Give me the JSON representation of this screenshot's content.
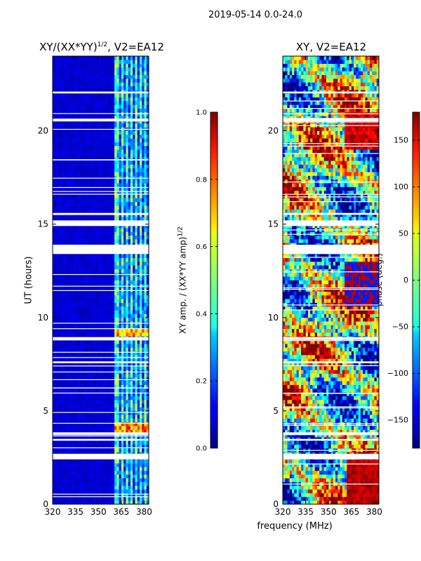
{
  "chart_data": {
    "suptitle": "2019-05-14 0.0-24.0",
    "xlabel": "frequency (MHz)",
    "ylabel": "UT (hours)",
    "panels": [
      {
        "type": "heatmap",
        "title": "XY/(XX*YY)",
        "title_sup": "1/2",
        "title_suffix": ", V2=EA12",
        "xlim": [
          320,
          383
        ],
        "ylim": [
          0,
          24
        ],
        "x_ticks": [
          320,
          335,
          350,
          365,
          380
        ],
        "y_ticks": [
          0,
          5,
          10,
          15,
          20
        ],
        "colorbar": {
          "label": "XY amp. / (XX*YY amp)",
          "label_sup": "1/2",
          "range": [
            0.0,
            1.0
          ],
          "ticks": [
            "0.0",
            "0.2",
            "0.4",
            "0.6",
            "0.8",
            "1.0"
          ],
          "cmap": "jet"
        }
      },
      {
        "type": "heatmap",
        "title": "XY, V2=EA12",
        "xlim": [
          320,
          383
        ],
        "ylim": [
          0,
          24
        ],
        "x_ticks": [
          320,
          335,
          350,
          365,
          380
        ],
        "y_ticks": [
          0,
          5,
          10,
          15,
          20
        ],
        "colorbar": {
          "label": "phase (deg.)",
          "range": [
            -180,
            180
          ],
          "ticks": [
            "−150",
            "−100",
            "−50",
            "0",
            "50",
            "100",
            "150"
          ],
          "tick_values": [
            -150,
            -100,
            -50,
            0,
            50,
            100,
            150
          ],
          "cmap": "jet"
        }
      }
    ],
    "data_gaps_ut": [
      [
        2.4,
        2.7
      ],
      [
        3.4,
        3.5
      ],
      [
        3.7,
        3.85
      ],
      [
        7.55,
        7.65
      ],
      [
        8.8,
        8.95
      ],
      [
        13.4,
        13.9
      ],
      [
        14.9,
        15.2
      ],
      [
        15.5,
        15.6
      ],
      [
        20.5,
        20.65
      ],
      [
        22.0,
        22.1
      ]
    ]
  }
}
